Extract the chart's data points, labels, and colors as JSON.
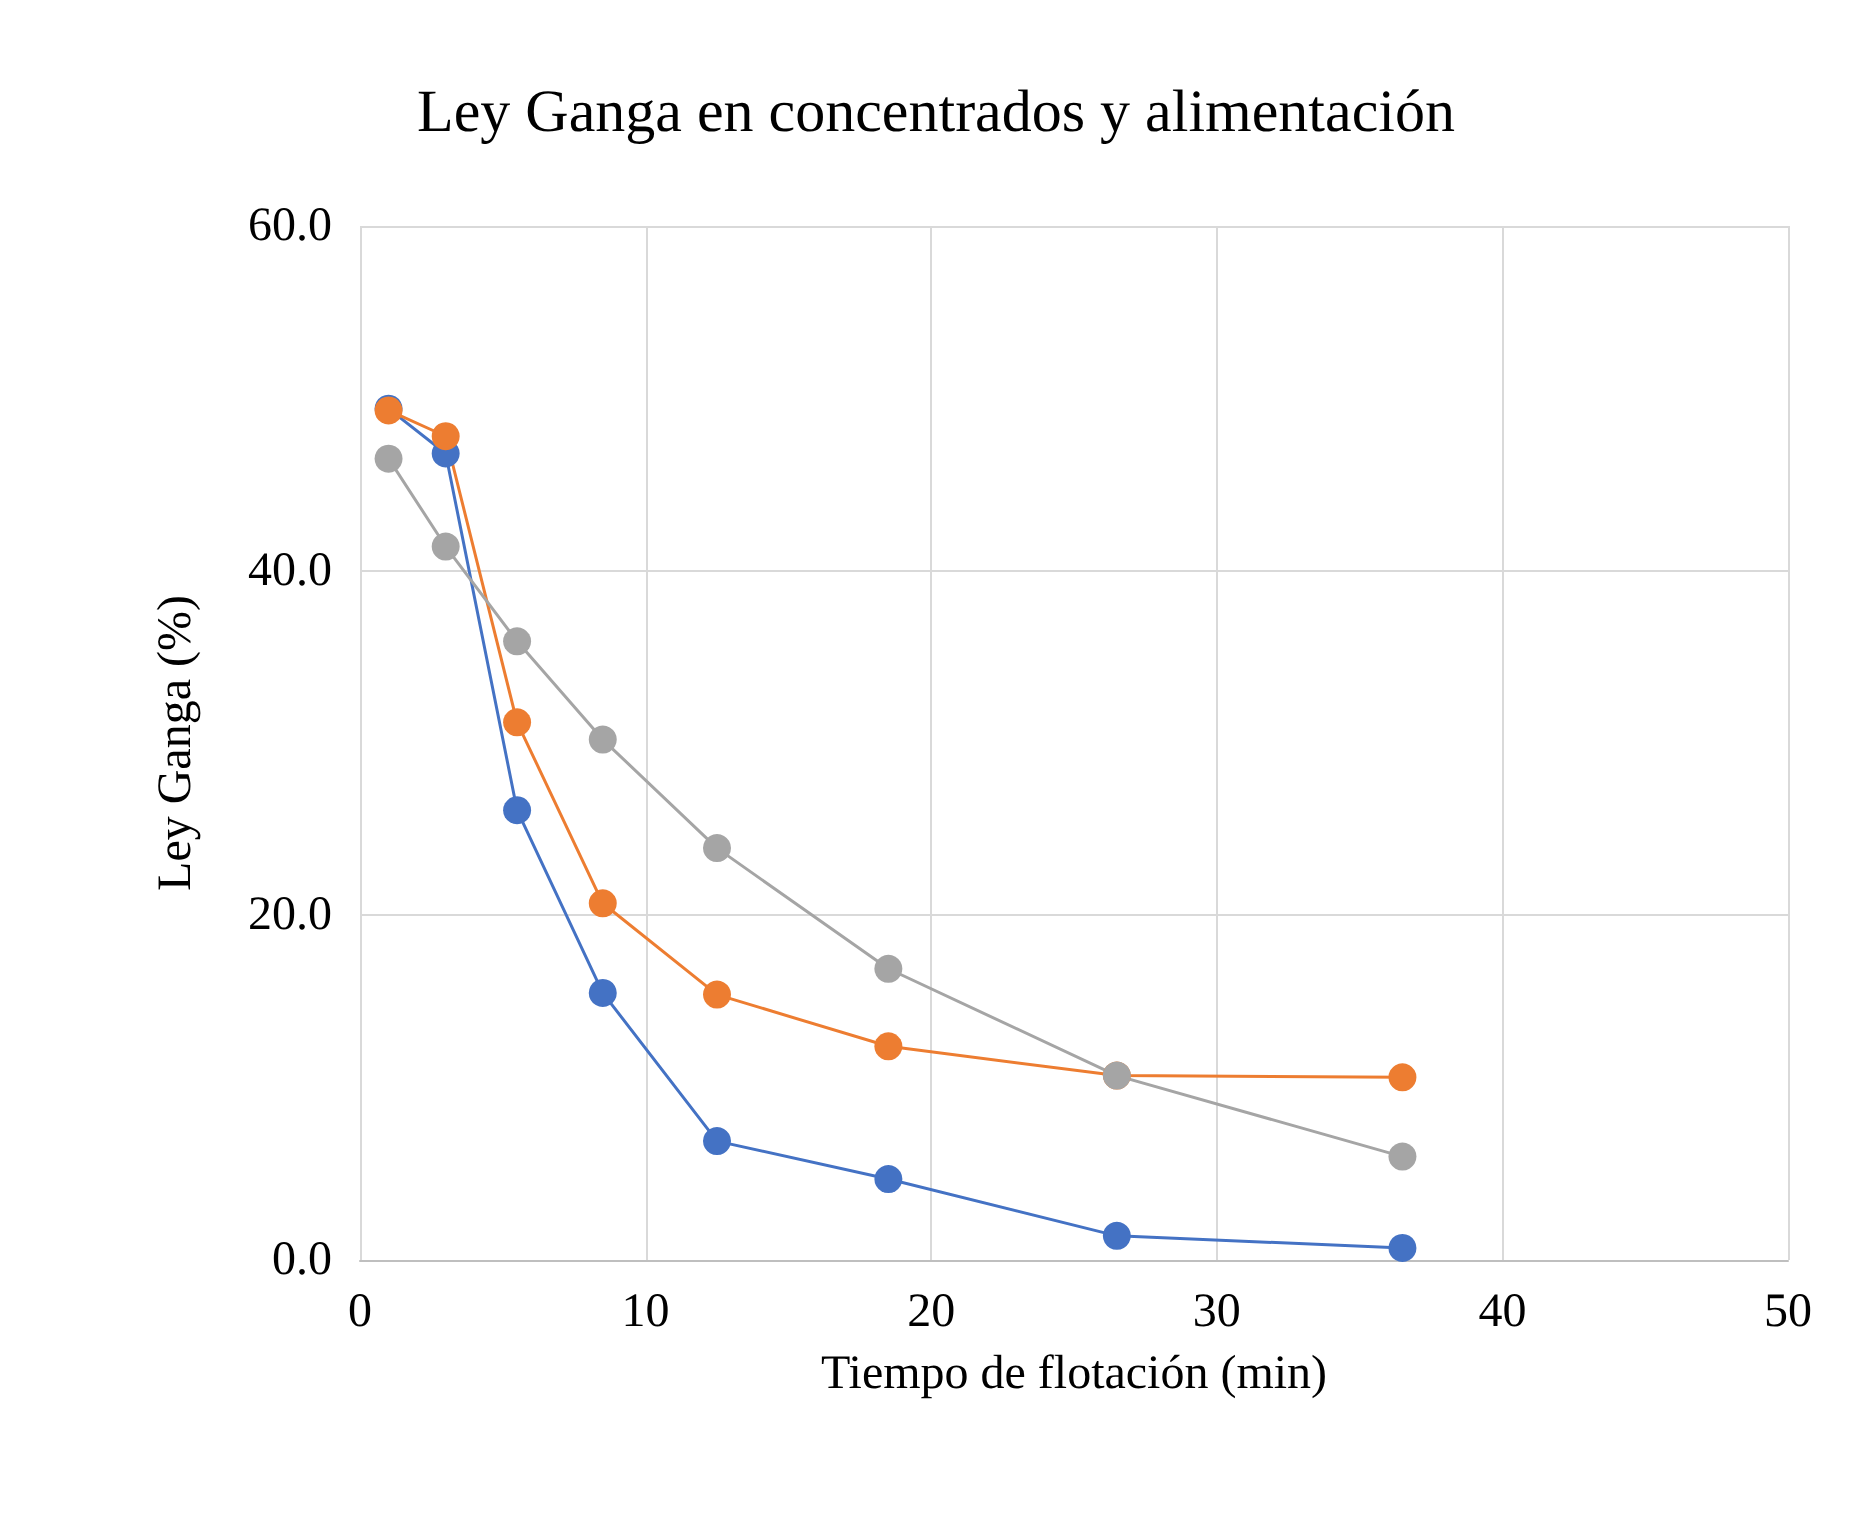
{
  "chart_data": {
    "type": "line",
    "title": "Ley Ganga en concentrados y alimentación",
    "xlabel": "Tiempo de flotación (min)",
    "ylabel": "Ley Ganga (%)",
    "x": [
      1,
      3,
      5.5,
      8.5,
      12.5,
      18.5,
      26.5,
      36.5
    ],
    "series": [
      {
        "color": "#4472c4",
        "values": [
          49.4,
          46.8,
          26.1,
          15.5,
          6.9,
          4.7,
          1.4,
          0.7
        ]
      },
      {
        "color": "#ed7d31",
        "values": [
          49.3,
          47.8,
          31.2,
          20.7,
          15.4,
          12.4,
          10.7,
          10.6
        ]
      },
      {
        "color": "#a5a5a5",
        "values": [
          46.5,
          41.4,
          35.9,
          30.2,
          23.9,
          16.9,
          10.7,
          6.0
        ]
      }
    ],
    "xlim": [
      0,
      50
    ],
    "xticks": [
      0,
      10,
      20,
      30,
      40,
      50
    ],
    "ylim": [
      0,
      60
    ],
    "yticks": [
      {
        "value": 0,
        "label": "0.0"
      },
      {
        "value": 20,
        "label": "20.0"
      },
      {
        "value": 40,
        "label": "40.0"
      },
      {
        "value": 60,
        "label": "60.0"
      }
    ],
    "grid": true,
    "marker": "circle",
    "line_style": "solid"
  }
}
